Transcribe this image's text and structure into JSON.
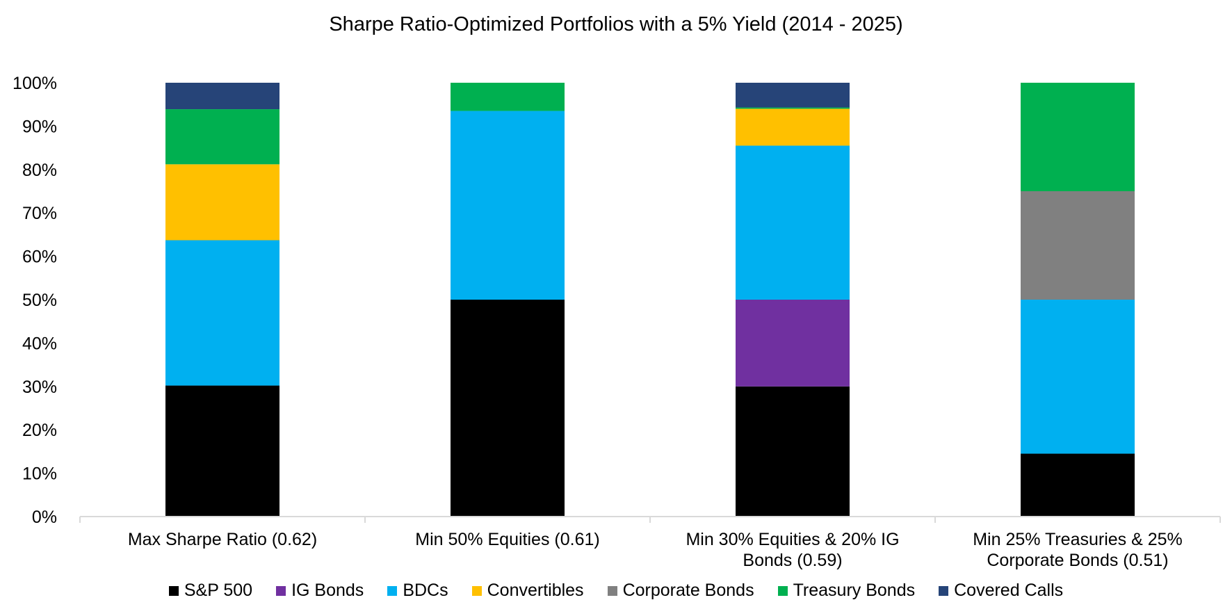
{
  "chart_data": {
    "type": "bar",
    "stacked": true,
    "title": "Sharpe Ratio-Optimized Portfolios with a 5% Yield (2014 - 2025)",
    "xlabel": "",
    "ylabel": "",
    "ylim": [
      0,
      100
    ],
    "yticks": [
      "0%",
      "10%",
      "20%",
      "30%",
      "40%",
      "50%",
      "60%",
      "70%",
      "80%",
      "90%",
      "100%"
    ],
    "grid": false,
    "legend_position": "bottom",
    "categories": [
      [
        "Max Sharpe Ratio (0.62)"
      ],
      [
        "Min 50% Equities (0.61)"
      ],
      [
        "Min 30% Equities & 20% IG",
        "Bonds (0.59)"
      ],
      [
        "Min 25% Treasuries & 25%",
        "Corporate Bonds (0.51)"
      ]
    ],
    "series": [
      {
        "name": "S&P 500",
        "color": "#000000",
        "values": [
          30.2,
          50.0,
          30.0,
          14.5
        ]
      },
      {
        "name": "IG Bonds",
        "color": "#7030A0",
        "values": [
          0.0,
          0.0,
          20.0,
          0.0
        ]
      },
      {
        "name": "BDCs",
        "color": "#00B0F0",
        "values": [
          33.5,
          43.5,
          35.5,
          35.5
        ]
      },
      {
        "name": "Convertibles",
        "color": "#FFC000",
        "values": [
          17.5,
          0.0,
          8.5,
          0.0
        ]
      },
      {
        "name": "Corporate Bonds",
        "color": "#808080",
        "values": [
          0.0,
          0.0,
          0.0,
          25.0
        ]
      },
      {
        "name": "Treasury Bonds",
        "color": "#00B050",
        "values": [
          12.7,
          6.5,
          0.3,
          25.0
        ]
      },
      {
        "name": "Covered Calls",
        "color": "#264478",
        "values": [
          6.1,
          0.0,
          5.7,
          0.0
        ]
      }
    ]
  }
}
